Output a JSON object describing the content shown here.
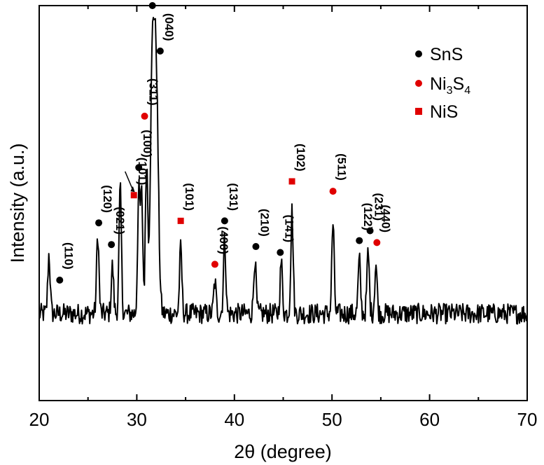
{
  "chart_data": {
    "type": "line",
    "title": "",
    "xlabel": "2θ (degree)",
    "ylabel": "Intensity (a.u.)",
    "xlim": [
      20,
      70
    ],
    "ylim": [
      0,
      100
    ],
    "x_ticks": [
      "20",
      "30",
      "40",
      "50",
      "60",
      "70"
    ],
    "y_ticks_labeled": false,
    "grid": false,
    "legend_position": "top-right",
    "colors": {
      "SnS": "#000000",
      "Ni3S4": "#e00000",
      "NiS": "#e00000",
      "line": "#000000"
    },
    "legend": [
      {
        "name": "SnS",
        "marker": "circle",
        "color": "#000000",
        "text": "SnS"
      },
      {
        "name": "Ni3S4",
        "marker": "circle",
        "color": "#e00000",
        "text": "Ni",
        "sub1": "3",
        "mid": "S",
        "sub2": "4"
      },
      {
        "name": "NiS",
        "marker": "square",
        "color": "#e00000",
        "text": "NiS"
      }
    ],
    "peaks": [
      {
        "x": 21.0,
        "y": 37.0
      },
      {
        "x": 26.0,
        "y": 42.0
      },
      {
        "x": 27.5,
        "y": 34.0
      },
      {
        "x": 28.3,
        "y": 53.5
      },
      {
        "x": 30.2,
        "y": 52.0
      },
      {
        "x": 30.5,
        "y": 51.5
      },
      {
        "x": 31.0,
        "y": 60.0
      },
      {
        "x": 31.6,
        "y": 84.0
      },
      {
        "x": 32.0,
        "y": 77.5
      },
      {
        "x": 34.5,
        "y": 38.5
      },
      {
        "x": 38.0,
        "y": 30.0
      },
      {
        "x": 39.0,
        "y": 41.0
      },
      {
        "x": 42.1,
        "y": 36.0
      },
      {
        "x": 44.8,
        "y": 35.0
      },
      {
        "x": 45.9,
        "y": 48.0
      },
      {
        "x": 50.1,
        "y": 45.0
      },
      {
        "x": 52.8,
        "y": 35.5
      },
      {
        "x": 53.7,
        "y": 37.5
      },
      {
        "x": 54.5,
        "y": 34.5
      }
    ],
    "baseline": 22,
    "annotations": [
      {
        "label": "(110)",
        "phase": "SnS",
        "x": 22.1,
        "y": 30.5
      },
      {
        "label": "(120)",
        "phase": "SnS",
        "x": 26.1,
        "y": 45.0
      },
      {
        "label": "(021)",
        "phase": "SnS",
        "x": 27.4,
        "y": 39.5
      },
      {
        "label": "(101)",
        "phase": "NiS",
        "x": 29.7,
        "y": 52.0
      },
      {
        "label": "(100)",
        "phase": "SnS",
        "x": 30.2,
        "y": 59.0
      },
      {
        "label": "(311)",
        "phase": "Ni3S4",
        "x": 30.8,
        "y": 72.0
      },
      {
        "label": "(111)",
        "phase": "SnS",
        "x": 31.6,
        "y": 100.0
      },
      {
        "label": "(040)",
        "phase": "SnS",
        "x": 32.4,
        "y": 88.5
      },
      {
        "label": "(101)",
        "phase": "NiS",
        "x": 34.5,
        "y": 45.5
      },
      {
        "label": "(400)",
        "phase": "Ni3S4",
        "x": 38.0,
        "y": 34.5
      },
      {
        "label": "(131)",
        "phase": "SnS",
        "x": 39.0,
        "y": 45.5
      },
      {
        "label": "(210)",
        "phase": "SnS",
        "x": 42.2,
        "y": 39.0
      },
      {
        "label": "(141)",
        "phase": "SnS",
        "x": 44.7,
        "y": 37.5
      },
      {
        "label": "(102)",
        "phase": "NiS",
        "x": 45.9,
        "y": 55.5
      },
      {
        "label": "(511)",
        "phase": "Ni3S4",
        "x": 50.1,
        "y": 53.0
      },
      {
        "label": "(122)",
        "phase": "SnS",
        "x": 52.8,
        "y": 40.5
      },
      {
        "label": "(231)",
        "phase": "SnS",
        "x": 53.9,
        "y": 43.0
      },
      {
        "label": "(440)",
        "phase": "Ni3S4",
        "x": 54.6,
        "y": 40.0
      }
    ]
  }
}
